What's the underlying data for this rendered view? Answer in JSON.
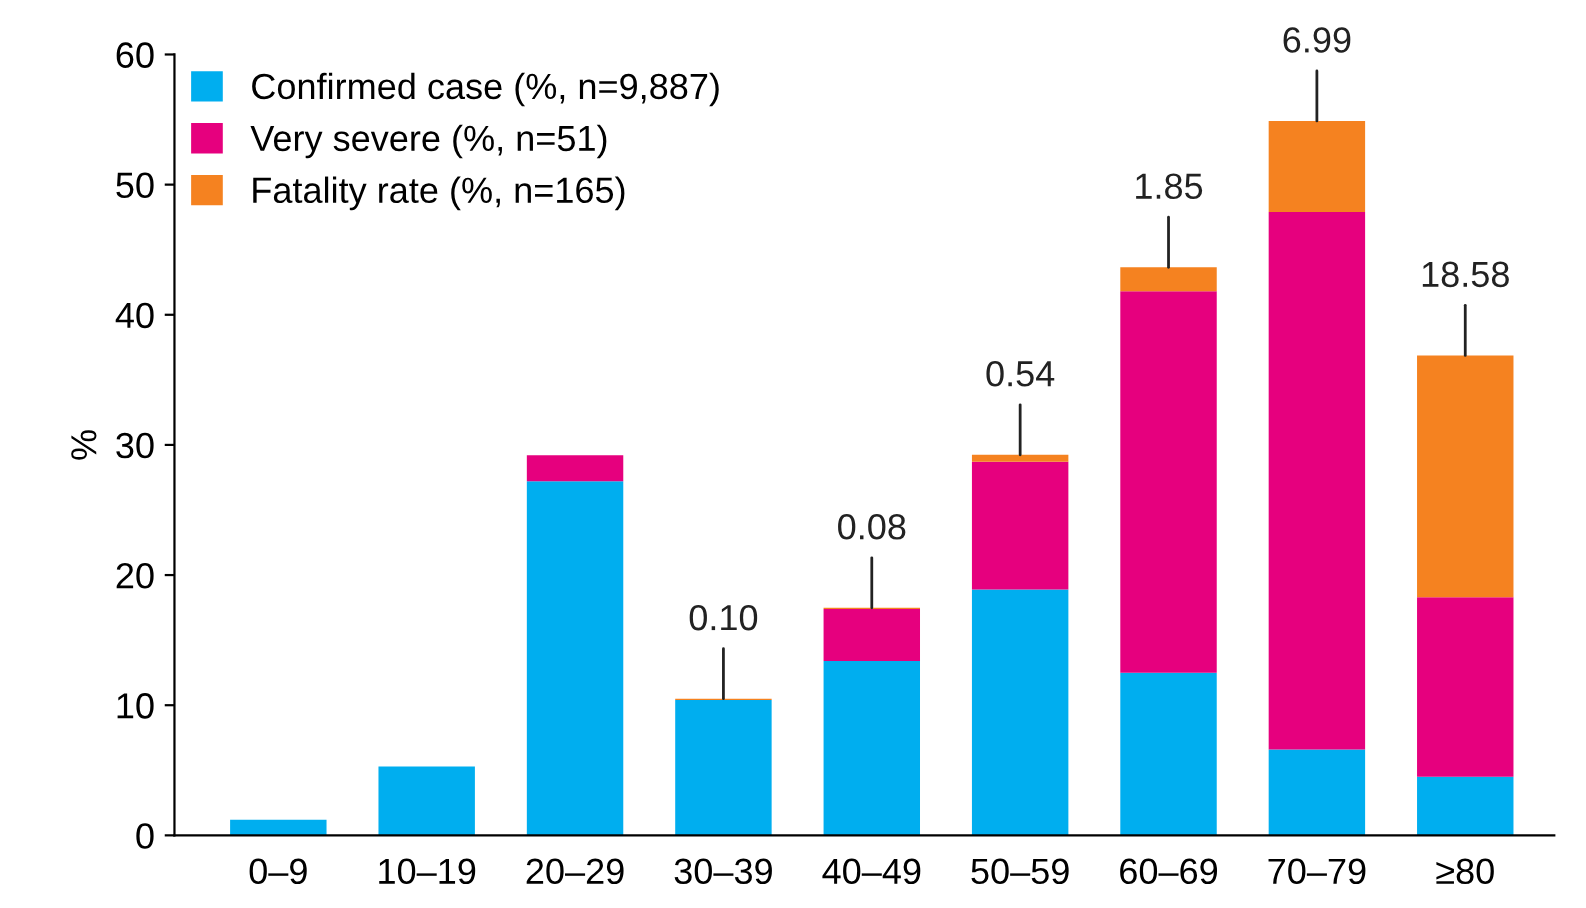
{
  "chart_data": {
    "type": "bar",
    "stacked": true,
    "ylabel": "%",
    "categories": [
      "0–9",
      "10–19",
      "20–29",
      "30–39",
      "40–49",
      "50–59",
      "60–69",
      "70–79",
      "≥80"
    ],
    "series": [
      {
        "name": "Confirmed case (%, n=9,887)",
        "color": "#00aeef",
        "values": [
          1.2,
          5.3,
          27.2,
          10.4,
          13.4,
          18.9,
          12.5,
          6.6,
          4.5
        ]
      },
      {
        "name": "Very severe (%, n=51)",
        "color": "#e6007e",
        "values": [
          null,
          null,
          2.0,
          null,
          4.0,
          9.8,
          29.3,
          41.3,
          13.8
        ]
      },
      {
        "name": "Fatality rate (%, n=165)",
        "color": "#f58220",
        "values": [
          null,
          null,
          null,
          0.1,
          0.08,
          0.54,
          1.85,
          6.99,
          18.58
        ],
        "value_labels": [
          null,
          null,
          null,
          "0.10",
          "0.08",
          "0.54",
          "1.85",
          "6.99",
          "18.58"
        ]
      }
    ],
    "ylim": [
      0,
      60
    ],
    "yticks": [
      0,
      10,
      20,
      30,
      40,
      50,
      60
    ],
    "grid": false,
    "legend": "top left"
  }
}
